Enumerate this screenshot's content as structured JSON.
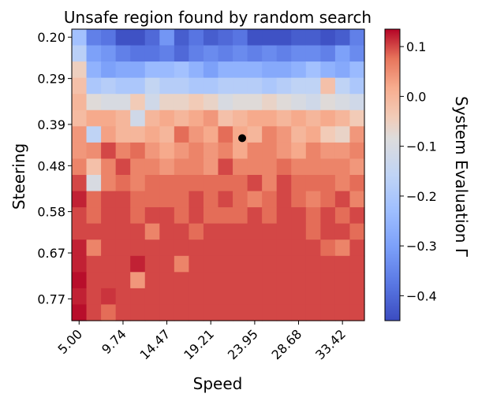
{
  "chart_data": {
    "type": "heatmap",
    "title": "Unsafe region found by random search",
    "xlabel": "Speed",
    "ylabel": "Steering",
    "colorbar_label": "System Evaluation Γ",
    "colormap": "coolwarm",
    "value_range": [
      -0.45,
      0.135
    ],
    "colorbar_ticks": [
      "0.1",
      "0.0",
      "−0.1",
      "−0.2",
      "−0.3",
      "−0.4"
    ],
    "colorbar_tick_values": [
      0.1,
      0.0,
      -0.1,
      -0.2,
      -0.3,
      -0.4
    ],
    "x_tick_labels": [
      "5.00",
      "9.74",
      "14.47",
      "19.21",
      "23.95",
      "28.68",
      "33.42"
    ],
    "x_tick_values": [
      5.0,
      9.74,
      14.47,
      19.21,
      23.95,
      28.68,
      33.42
    ],
    "x_range": [
      4.21,
      35.79
    ],
    "y_tick_labels": [
      "0.20",
      "0.29",
      "0.39",
      "0.48",
      "0.58",
      "0.67",
      "0.77"
    ],
    "y_tick_values": [
      0.2,
      0.29,
      0.39,
      0.48,
      0.58,
      0.67,
      0.77
    ],
    "y_range": [
      0.1825,
      0.8175
    ],
    "grid": "off",
    "marker": {
      "x": 22.6,
      "y": 0.42,
      "color": "#000000"
    },
    "rows": 18,
    "cols": 20,
    "values": [
      [
        -0.22,
        -0.36,
        -0.38,
        -0.44,
        -0.44,
        -0.4,
        -0.32,
        -0.42,
        -0.38,
        -0.42,
        -0.4,
        -0.38,
        -0.44,
        -0.44,
        -0.44,
        -0.42,
        -0.42,
        -0.44,
        -0.42,
        -0.36
      ],
      [
        -0.17,
        -0.3,
        -0.32,
        -0.36,
        -0.38,
        -0.38,
        -0.36,
        -0.4,
        -0.36,
        -0.34,
        -0.36,
        -0.34,
        -0.36,
        -0.34,
        -0.36,
        -0.34,
        -0.34,
        -0.36,
        -0.3,
        -0.34
      ],
      [
        -0.05,
        -0.26,
        -0.3,
        -0.28,
        -0.28,
        -0.24,
        -0.24,
        -0.22,
        -0.26,
        -0.3,
        -0.26,
        -0.26,
        -0.26,
        -0.28,
        -0.28,
        -0.26,
        -0.22,
        -0.26,
        -0.28,
        -0.24
      ],
      [
        -0.02,
        -0.2,
        -0.18,
        -0.2,
        -0.2,
        -0.15,
        -0.18,
        -0.18,
        -0.2,
        -0.2,
        -0.18,
        -0.18,
        -0.18,
        -0.2,
        -0.18,
        -0.16,
        -0.16,
        -0.02,
        -0.16,
        -0.2
      ],
      [
        0.0,
        -0.08,
        -0.1,
        -0.1,
        -0.04,
        -0.12,
        -0.06,
        -0.06,
        -0.04,
        -0.06,
        -0.1,
        -0.08,
        -0.08,
        -0.06,
        -0.08,
        -0.1,
        -0.12,
        -0.08,
        -0.1,
        -0.12
      ],
      [
        -0.01,
        0.02,
        0.02,
        0.0,
        -0.12,
        0.0,
        0.02,
        0.0,
        0.02,
        0.04,
        -0.02,
        0.0,
        0.02,
        0.02,
        0.0,
        0.02,
        0.0,
        0.02,
        0.0,
        -0.04
      ],
      [
        0.04,
        -0.16,
        0.03,
        0.0,
        0.0,
        0.02,
        0.0,
        0.08,
        0.04,
        0.02,
        0.08,
        0.02,
        0.0,
        0.06,
        0.04,
        0.0,
        0.02,
        -0.04,
        -0.06,
        0.04
      ],
      [
        0.04,
        0.05,
        0.1,
        0.06,
        0.08,
        0.04,
        0.02,
        0.04,
        0.06,
        0.04,
        0.06,
        0.02,
        0.06,
        0.06,
        0.04,
        0.02,
        0.06,
        0.04,
        0.04,
        0.06
      ],
      [
        0.06,
        -0.02,
        0.06,
        0.1,
        0.06,
        0.06,
        0.04,
        0.06,
        0.06,
        0.04,
        0.1,
        0.06,
        0.06,
        0.06,
        0.08,
        0.06,
        0.06,
        0.06,
        0.06,
        0.04
      ],
      [
        0.1,
        -0.1,
        0.06,
        0.08,
        0.06,
        0.08,
        0.08,
        0.08,
        0.08,
        0.08,
        0.08,
        0.08,
        0.1,
        0.06,
        0.1,
        0.08,
        0.08,
        0.08,
        0.06,
        0.08
      ],
      [
        0.12,
        0.08,
        0.1,
        0.1,
        0.08,
        0.08,
        0.08,
        0.08,
        0.1,
        0.08,
        0.1,
        0.08,
        0.06,
        0.08,
        0.1,
        0.08,
        0.06,
        0.08,
        0.1,
        0.06
      ],
      [
        0.1,
        0.08,
        0.1,
        0.1,
        0.08,
        0.1,
        0.1,
        0.08,
        0.1,
        0.08,
        0.08,
        0.08,
        0.1,
        0.08,
        0.1,
        0.1,
        0.08,
        0.1,
        0.08,
        0.1
      ],
      [
        0.1,
        0.1,
        0.1,
        0.1,
        0.1,
        0.06,
        0.1,
        0.1,
        0.08,
        0.1,
        0.1,
        0.1,
        0.1,
        0.1,
        0.1,
        0.1,
        0.08,
        0.1,
        0.1,
        0.08
      ],
      [
        0.12,
        0.06,
        0.1,
        0.1,
        0.1,
        0.1,
        0.1,
        0.1,
        0.1,
        0.1,
        0.1,
        0.1,
        0.1,
        0.1,
        0.1,
        0.1,
        0.1,
        0.08,
        0.06,
        0.1
      ],
      [
        0.12,
        0.1,
        0.1,
        0.1,
        0.12,
        0.1,
        0.1,
        0.06,
        0.1,
        0.1,
        0.1,
        0.1,
        0.1,
        0.1,
        0.1,
        0.1,
        0.1,
        0.1,
        0.1,
        0.1
      ],
      [
        0.13,
        0.1,
        0.1,
        0.1,
        0.04,
        0.1,
        0.1,
        0.1,
        0.1,
        0.1,
        0.1,
        0.1,
        0.1,
        0.1,
        0.1,
        0.1,
        0.1,
        0.1,
        0.1,
        0.1
      ],
      [
        0.12,
        0.1,
        0.11,
        0.1,
        0.1,
        0.1,
        0.1,
        0.1,
        0.1,
        0.1,
        0.1,
        0.1,
        0.1,
        0.1,
        0.1,
        0.1,
        0.1,
        0.1,
        0.1,
        0.1
      ],
      [
        0.13,
        0.1,
        0.08,
        0.1,
        0.1,
        0.1,
        0.1,
        0.1,
        0.1,
        0.1,
        0.1,
        0.1,
        0.1,
        0.1,
        0.1,
        0.1,
        0.1,
        0.1,
        0.1,
        0.1
      ]
    ]
  }
}
